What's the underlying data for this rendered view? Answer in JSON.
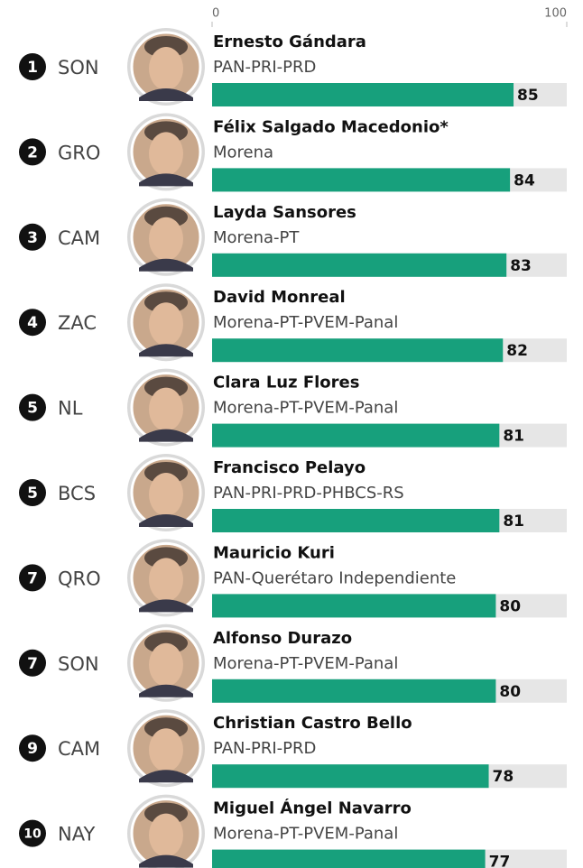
{
  "chart_data": {
    "type": "bar",
    "orientation": "horizontal",
    "ranks": [
      1,
      2,
      3,
      4,
      5,
      5,
      7,
      7,
      9,
      10
    ],
    "states": [
      "SON",
      "GRO",
      "CAM",
      "ZAC",
      "NL",
      "BCS",
      "QRO",
      "SON",
      "CAM",
      "NAY"
    ],
    "categories": [
      "Ernesto Gándara",
      "Félix Salgado Macedonio*",
      "Layda Sansores",
      "David Monreal",
      "Clara Luz Flores",
      "Francisco Pelayo",
      "Mauricio Kuri",
      "Alfonso Durazo",
      "Christian Castro Bello",
      "Miguel Ángel Navarro"
    ],
    "parties": [
      "PAN-PRI-PRD",
      "Morena",
      "Morena-PT",
      "Morena-PT-PVEM-Panal",
      "Morena-PT-PVEM-Panal",
      "PAN-PRI-PRD-PHBCS-RS",
      "PAN-Querétaro Independiente",
      "Morena-PT-PVEM-Panal",
      "PAN-PRI-PRD",
      "Morena-PT-PVEM-Panal"
    ],
    "values": [
      85,
      84,
      83,
      82,
      81,
      81,
      80,
      80,
      78,
      77
    ],
    "color": "#17a07c",
    "track_color": "#e6e6e6",
    "xlim": [
      0,
      100
    ],
    "xticks": [
      0,
      100
    ]
  }
}
